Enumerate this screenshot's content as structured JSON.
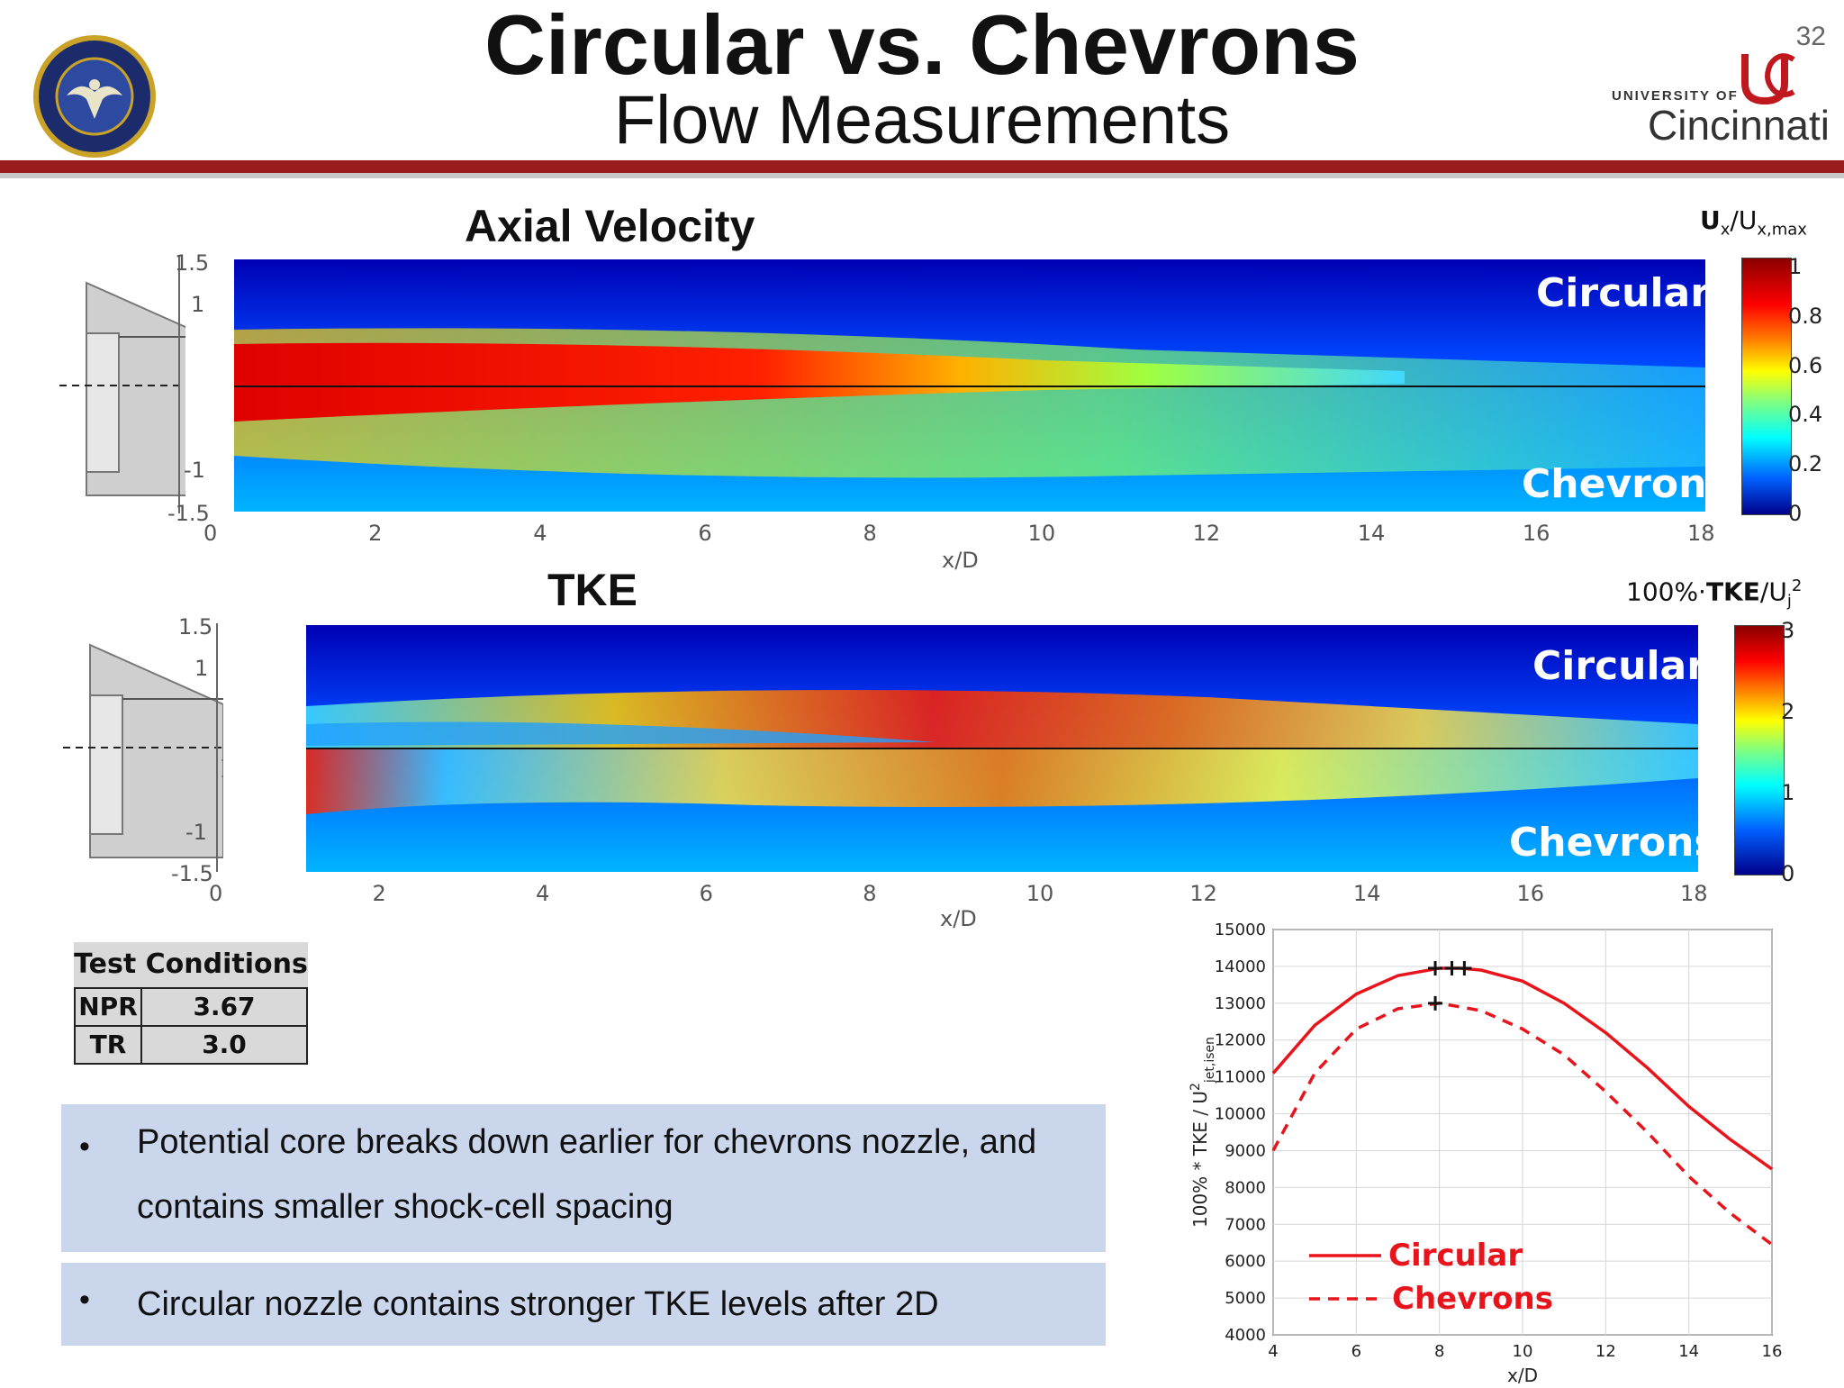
{
  "header": {
    "title": "Circular vs. Chevrons",
    "subtitle": "Flow Measurements",
    "slide_number": "32",
    "university_small": "UNIVERSITY OF",
    "university_big": "Cincinnati",
    "colors": {
      "rule": "#9b1c1c",
      "seal_blue": "#1b2b6b",
      "seal_gold": "#c9a227",
      "uc_red": "#c0181f"
    }
  },
  "axial_panel": {
    "title": "Axial Velocity",
    "upper_label": "Circular",
    "lower_label": "Chevrons",
    "y_ticks": [
      "1.5",
      "1",
      "-1",
      "-1.5"
    ],
    "x_ticks": [
      "0",
      "2",
      "4",
      "6",
      "8",
      "10",
      "12",
      "14",
      "16",
      "18"
    ],
    "x_label": "x/D",
    "colorbar": {
      "var": "U",
      "var_sub": "x",
      "denom": "U",
      "denom_sub": "x,max",
      "ticks": [
        "1",
        "0.8",
        "0.6",
        "0.4",
        "0.2",
        "0"
      ]
    }
  },
  "tke_panel": {
    "title": "TKE",
    "upper_label": "Circular",
    "lower_label": "Chevrons",
    "y_ticks": [
      "1.5",
      "1",
      "-1",
      "-1.5"
    ],
    "x_ticks": [
      "0",
      "2",
      "4",
      "6",
      "8",
      "10",
      "12",
      "14",
      "16",
      "18"
    ],
    "x_label": "x/D",
    "colorbar": {
      "prefix": "100%·",
      "var": "TKE",
      "denom": "U",
      "denom_sub": "j",
      "denom_sup": "2",
      "ticks": [
        "3",
        "2",
        "1",
        "0"
      ]
    }
  },
  "test_conditions": {
    "header": "Test Conditions",
    "rows": [
      {
        "key": "NPR",
        "value": "3.67"
      },
      {
        "key": "TR",
        "value": "3.0"
      }
    ]
  },
  "bullets": [
    {
      "line1": "Potential core breaks down earlier for chevrons nozzle, and",
      "line2": "contains smaller shock-cell spacing"
    },
    {
      "line1": "Circular nozzle contains stronger TKE levels after 2D"
    }
  ],
  "chart_data": {
    "type": "line",
    "xlabel": "x/D",
    "ylabel_main": "100% * TKE / U",
    "ylabel_sub": "jet,isen",
    "ylabel_sup": "2",
    "xlim": [
      4,
      16
    ],
    "ylim": [
      4000,
      15000
    ],
    "x_ticks": [
      4,
      6,
      8,
      10,
      12,
      14,
      16
    ],
    "y_ticks": [
      4000,
      5000,
      6000,
      7000,
      8000,
      9000,
      10000,
      11000,
      12000,
      13000,
      14000,
      15000
    ],
    "grid": true,
    "legend_position": "bottom-left",
    "series": [
      {
        "name": "Circular",
        "style": "solid",
        "color": "#e8141c",
        "x": [
          4,
          5,
          6,
          7,
          8,
          8.5,
          9,
          10,
          11,
          12,
          13,
          14,
          15,
          16
        ],
        "y": [
          11100,
          12400,
          13250,
          13750,
          13950,
          13950,
          13900,
          13600,
          13000,
          12200,
          11250,
          10200,
          9300,
          8500
        ]
      },
      {
        "name": "Chevrons",
        "style": "dashed",
        "color": "#e8141c",
        "x": [
          4,
          5,
          6,
          7,
          8,
          9,
          10,
          11,
          12,
          13,
          14,
          15,
          16
        ],
        "y": [
          9000,
          11100,
          12300,
          12850,
          13000,
          12800,
          12300,
          11600,
          10600,
          9500,
          8300,
          7300,
          6450
        ]
      }
    ],
    "markers": [
      {
        "x": 7.9,
        "y": 13950
      },
      {
        "x": 8.3,
        "y": 13950
      },
      {
        "x": 8.6,
        "y": 13950
      },
      {
        "x": 7.9,
        "y": 13000
      }
    ]
  }
}
